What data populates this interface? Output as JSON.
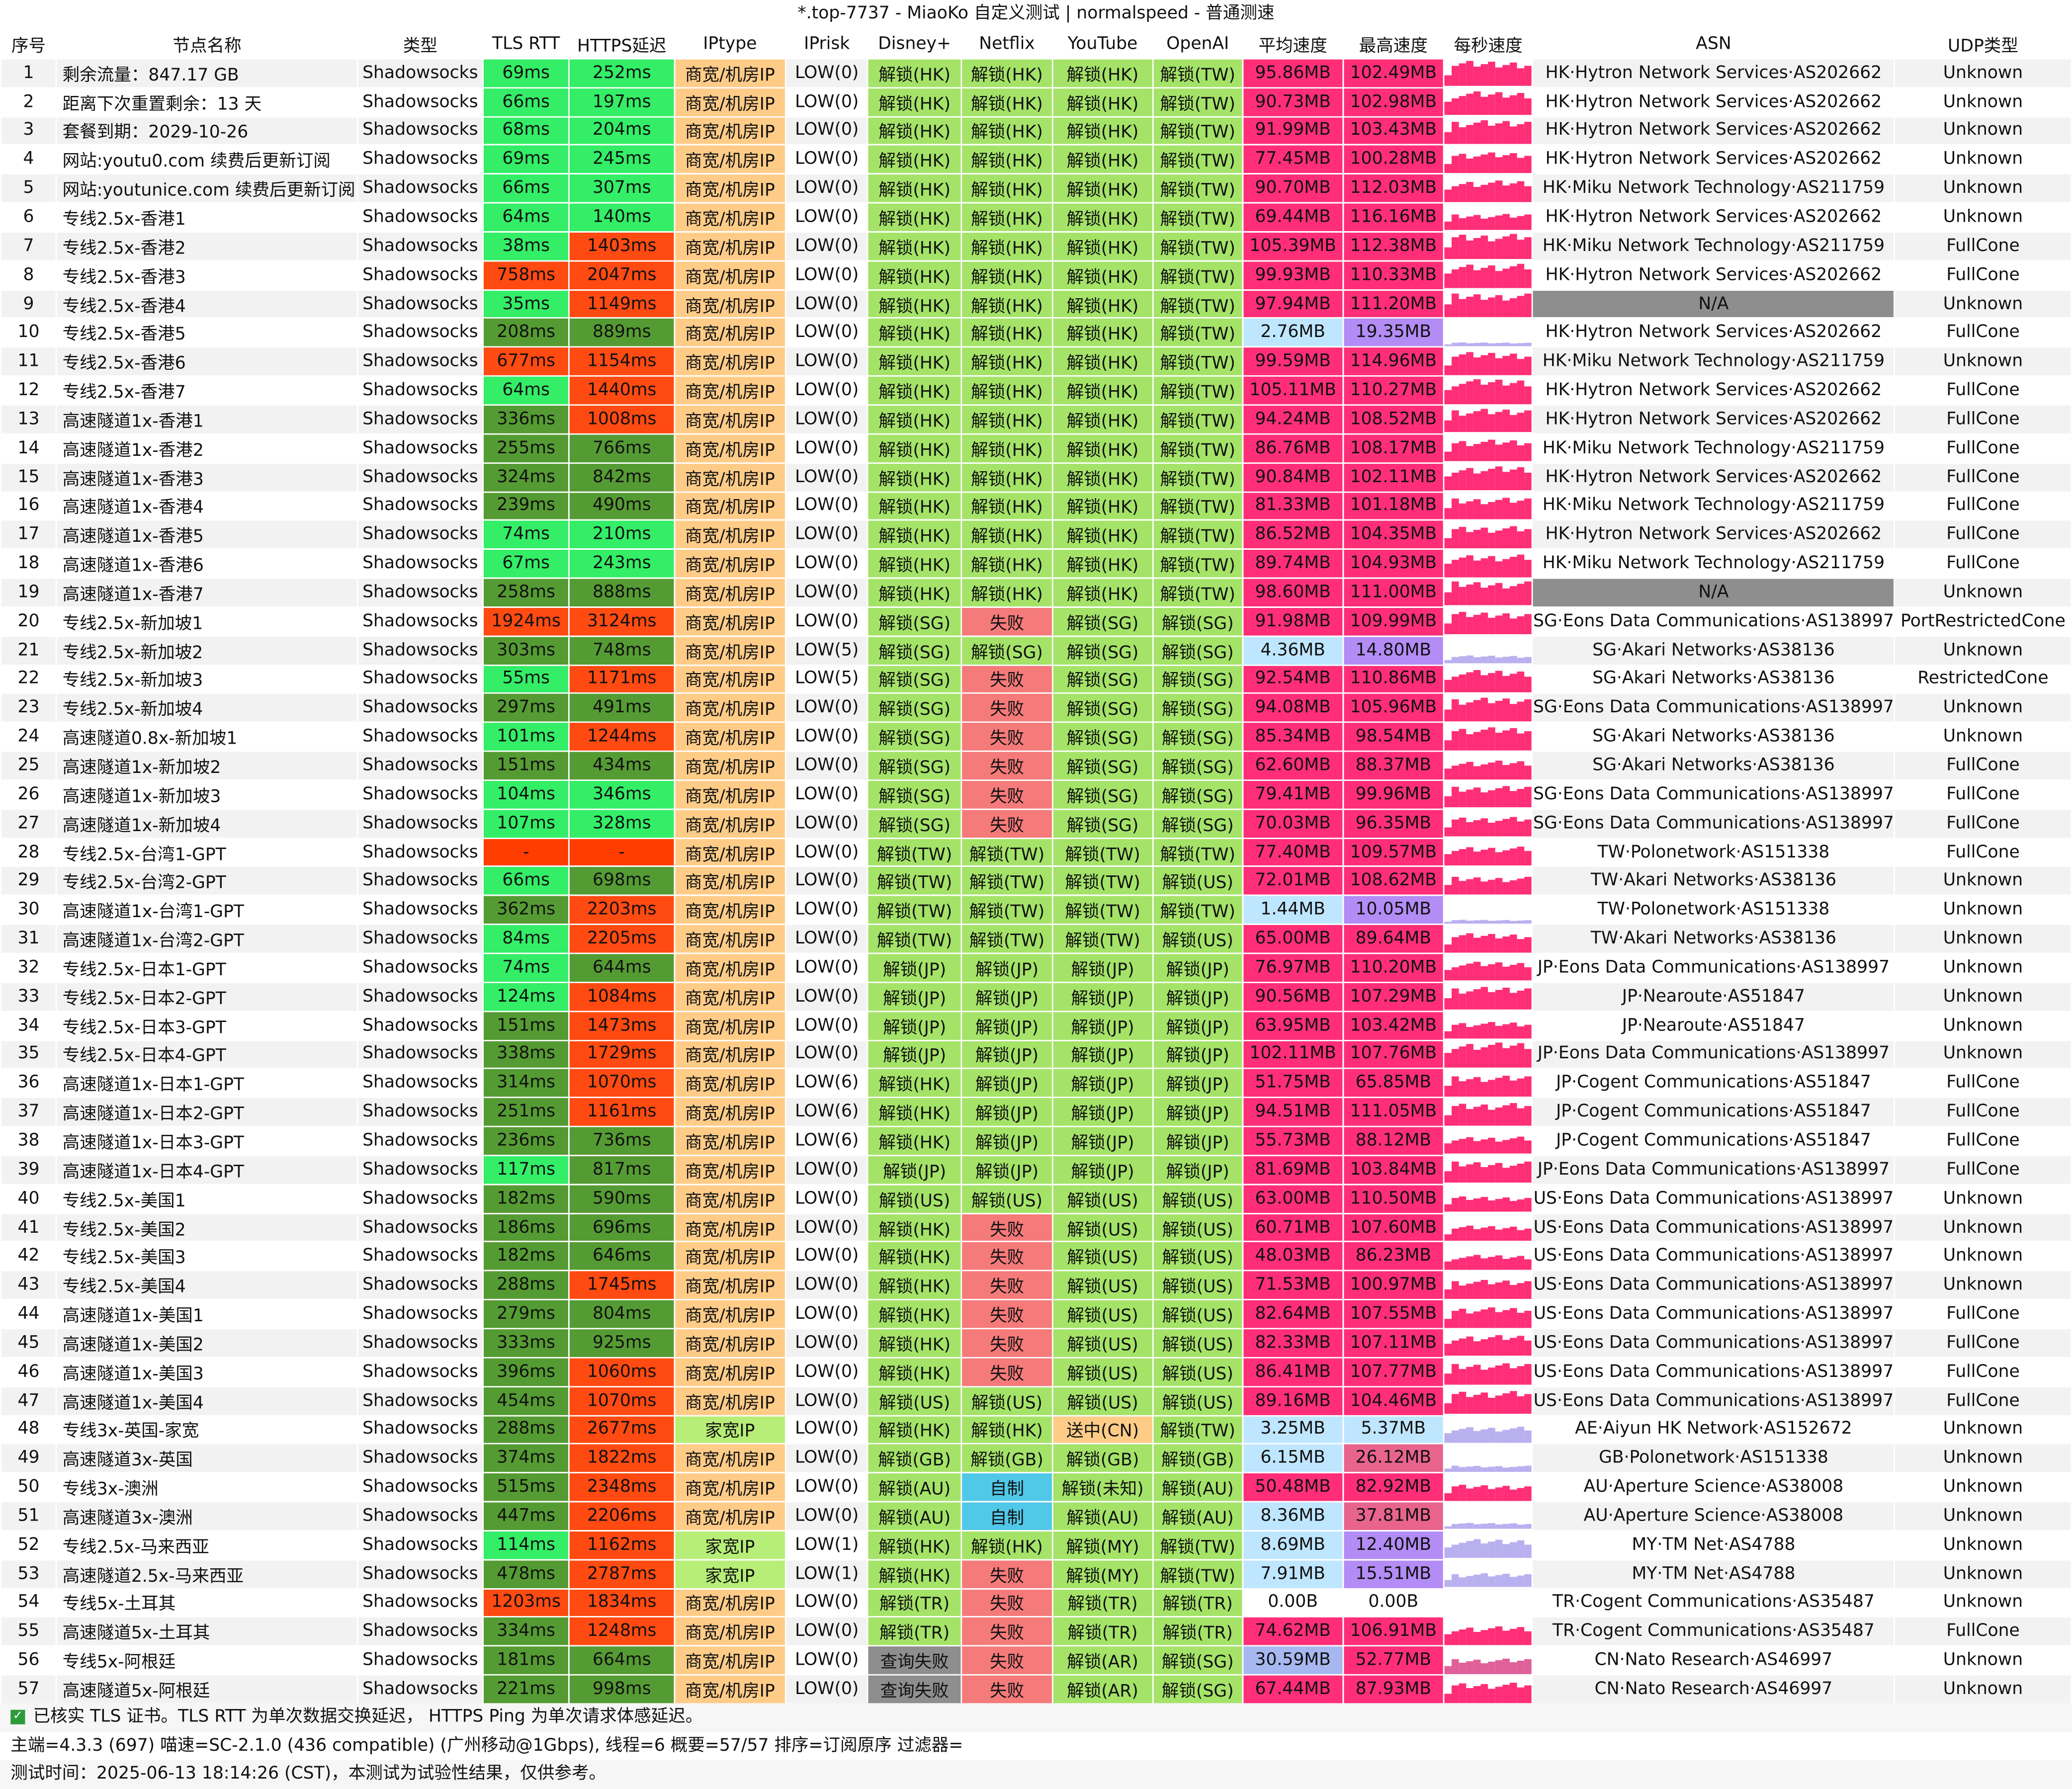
{
  "window_title": "*.top-7737 - MiaoKo 自定义测试 | normalspeed - 普通测速",
  "columns": [
    "序号",
    "节点名称",
    "类型",
    "TLS RTT",
    "HTTPS延迟",
    "IPtype",
    "IPrisk",
    "Disney+",
    "Netflix",
    "YouTube",
    "OpenAI",
    "平均速度",
    "最高速度",
    "每秒速度",
    "ASN",
    "UDP类型"
  ],
  "colors": {
    "rtt_good": "#33ee66",
    "rtt_mid": "#559b33",
    "rtt_bad": "#ff4a11",
    "rtt_fail": "#ff3d00",
    "iptype_business": "#ffcc88",
    "iptype_home": "#b7ee77",
    "unlock": "#a4e368",
    "fail": "#f57a7a",
    "self_made": "#50c8e8",
    "query_fail": "#8e8e8e",
    "sending": "#ffcc88",
    "speed_high": "#ff2e77",
    "speed_low": "#bfe6ff",
    "speed_mid": "#a7b8f0",
    "speed_purple": "#b38cf6",
    "asn_na": "#8e8e8e",
    "sparkline": "#ff2e77"
  },
  "rows": [
    [
      "1",
      "剩余流量：847.17 GB",
      "Shadowsocks",
      "69ms",
      "252ms",
      "商宽/机房IP",
      "LOW(0)",
      "解锁(HK)",
      "解锁(HK)",
      "解锁(HK)",
      "解锁(TW)",
      "95.86MB",
      "102.49MB",
      "",
      "HK·Hytron Network Services·AS202662",
      "Unknown"
    ],
    [
      "2",
      "距离下次重置剩余：13 天",
      "Shadowsocks",
      "66ms",
      "197ms",
      "商宽/机房IP",
      "LOW(0)",
      "解锁(HK)",
      "解锁(HK)",
      "解锁(HK)",
      "解锁(TW)",
      "90.73MB",
      "102.98MB",
      "",
      "HK·Hytron Network Services·AS202662",
      "Unknown"
    ],
    [
      "3",
      "套餐到期：2029-10-26",
      "Shadowsocks",
      "68ms",
      "204ms",
      "商宽/机房IP",
      "LOW(0)",
      "解锁(HK)",
      "解锁(HK)",
      "解锁(HK)",
      "解锁(TW)",
      "91.99MB",
      "103.43MB",
      "",
      "HK·Hytron Network Services·AS202662",
      "Unknown"
    ],
    [
      "4",
      "网站:youtu0.com 续费后更新订阅",
      "Shadowsocks",
      "69ms",
      "245ms",
      "商宽/机房IP",
      "LOW(0)",
      "解锁(HK)",
      "解锁(HK)",
      "解锁(HK)",
      "解锁(TW)",
      "77.45MB",
      "100.28MB",
      "",
      "HK·Hytron Network Services·AS202662",
      "Unknown"
    ],
    [
      "5",
      "网站:youtunice.com 续费后更新订阅",
      "Shadowsocks",
      "66ms",
      "307ms",
      "商宽/机房IP",
      "LOW(0)",
      "解锁(HK)",
      "解锁(HK)",
      "解锁(HK)",
      "解锁(TW)",
      "90.70MB",
      "112.03MB",
      "",
      "HK·Miku Network Technology·AS211759",
      "Unknown"
    ],
    [
      "6",
      "专线2.5x-香港1",
      "Shadowsocks",
      "64ms",
      "140ms",
      "商宽/机房IP",
      "LOW(0)",
      "解锁(HK)",
      "解锁(HK)",
      "解锁(HK)",
      "解锁(TW)",
      "69.44MB",
      "116.16MB",
      "",
      "HK·Hytron Network Services·AS202662",
      "Unknown"
    ],
    [
      "7",
      "专线2.5x-香港2",
      "Shadowsocks",
      "38ms",
      "1403ms",
      "商宽/机房IP",
      "LOW(0)",
      "解锁(HK)",
      "解锁(HK)",
      "解锁(HK)",
      "解锁(TW)",
      "105.39MB",
      "112.38MB",
      "",
      "HK·Miku Network Technology·AS211759",
      "FullCone"
    ],
    [
      "8",
      "专线2.5x-香港3",
      "Shadowsocks",
      "758ms",
      "2047ms",
      "商宽/机房IP",
      "LOW(0)",
      "解锁(HK)",
      "解锁(HK)",
      "解锁(HK)",
      "解锁(TW)",
      "99.93MB",
      "110.33MB",
      "",
      "HK·Hytron Network Services·AS202662",
      "FullCone"
    ],
    [
      "9",
      "专线2.5x-香港4",
      "Shadowsocks",
      "35ms",
      "1149ms",
      "商宽/机房IP",
      "LOW(0)",
      "解锁(HK)",
      "解锁(HK)",
      "解锁(HK)",
      "解锁(TW)",
      "97.94MB",
      "111.20MB",
      "",
      "N/A",
      "Unknown"
    ],
    [
      "10",
      "专线2.5x-香港5",
      "Shadowsocks",
      "208ms",
      "889ms",
      "商宽/机房IP",
      "LOW(0)",
      "解锁(HK)",
      "解锁(HK)",
      "解锁(HK)",
      "解锁(TW)",
      "2.76MB",
      "19.35MB",
      "",
      "HK·Hytron Network Services·AS202662",
      "FullCone"
    ],
    [
      "11",
      "专线2.5x-香港6",
      "Shadowsocks",
      "677ms",
      "1154ms",
      "商宽/机房IP",
      "LOW(0)",
      "解锁(HK)",
      "解锁(HK)",
      "解锁(HK)",
      "解锁(TW)",
      "99.59MB",
      "114.96MB",
      "",
      "HK·Miku Network Technology·AS211759",
      "Unknown"
    ],
    [
      "12",
      "专线2.5x-香港7",
      "Shadowsocks",
      "64ms",
      "1440ms",
      "商宽/机房IP",
      "LOW(0)",
      "解锁(HK)",
      "解锁(HK)",
      "解锁(HK)",
      "解锁(TW)",
      "105.11MB",
      "110.27MB",
      "",
      "HK·Hytron Network Services·AS202662",
      "FullCone"
    ],
    [
      "13",
      "高速隧道1x-香港1",
      "Shadowsocks",
      "336ms",
      "1008ms",
      "商宽/机房IP",
      "LOW(0)",
      "解锁(HK)",
      "解锁(HK)",
      "解锁(HK)",
      "解锁(TW)",
      "94.24MB",
      "108.52MB",
      "",
      "HK·Hytron Network Services·AS202662",
      "FullCone"
    ],
    [
      "14",
      "高速隧道1x-香港2",
      "Shadowsocks",
      "255ms",
      "766ms",
      "商宽/机房IP",
      "LOW(0)",
      "解锁(HK)",
      "解锁(HK)",
      "解锁(HK)",
      "解锁(TW)",
      "86.76MB",
      "108.17MB",
      "",
      "HK·Miku Network Technology·AS211759",
      "FullCone"
    ],
    [
      "15",
      "高速隧道1x-香港3",
      "Shadowsocks",
      "324ms",
      "842ms",
      "商宽/机房IP",
      "LOW(0)",
      "解锁(HK)",
      "解锁(HK)",
      "解锁(HK)",
      "解锁(TW)",
      "90.84MB",
      "102.11MB",
      "",
      "HK·Hytron Network Services·AS202662",
      "FullCone"
    ],
    [
      "16",
      "高速隧道1x-香港4",
      "Shadowsocks",
      "239ms",
      "490ms",
      "商宽/机房IP",
      "LOW(0)",
      "解锁(HK)",
      "解锁(HK)",
      "解锁(HK)",
      "解锁(TW)",
      "81.33MB",
      "101.18MB",
      "",
      "HK·Miku Network Technology·AS211759",
      "FullCone"
    ],
    [
      "17",
      "高速隧道1x-香港5",
      "Shadowsocks",
      "74ms",
      "210ms",
      "商宽/机房IP",
      "LOW(0)",
      "解锁(HK)",
      "解锁(HK)",
      "解锁(HK)",
      "解锁(TW)",
      "86.52MB",
      "104.35MB",
      "",
      "HK·Hytron Network Services·AS202662",
      "FullCone"
    ],
    [
      "18",
      "高速隧道1x-香港6",
      "Shadowsocks",
      "67ms",
      "243ms",
      "商宽/机房IP",
      "LOW(0)",
      "解锁(HK)",
      "解锁(HK)",
      "解锁(HK)",
      "解锁(TW)",
      "89.74MB",
      "104.93MB",
      "",
      "HK·Miku Network Technology·AS211759",
      "FullCone"
    ],
    [
      "19",
      "高速隧道1x-香港7",
      "Shadowsocks",
      "258ms",
      "888ms",
      "商宽/机房IP",
      "LOW(0)",
      "解锁(HK)",
      "解锁(HK)",
      "解锁(HK)",
      "解锁(TW)",
      "98.60MB",
      "111.00MB",
      "",
      "N/A",
      "Unknown"
    ],
    [
      "20",
      "专线2.5x-新加坡1",
      "Shadowsocks",
      "1924ms",
      "3124ms",
      "商宽/机房IP",
      "LOW(0)",
      "解锁(SG)",
      "失败",
      "解锁(SG)",
      "解锁(SG)",
      "91.98MB",
      "109.99MB",
      "",
      "SG·Eons Data Communications·AS138997",
      "PortRestrictedCone"
    ],
    [
      "21",
      "专线2.5x-新加坡2",
      "Shadowsocks",
      "303ms",
      "748ms",
      "商宽/机房IP",
      "LOW(5)",
      "解锁(SG)",
      "解锁(SG)",
      "解锁(SG)",
      "解锁(SG)",
      "4.36MB",
      "14.80MB",
      "",
      "SG·Akari Networks·AS38136",
      "Unknown"
    ],
    [
      "22",
      "专线2.5x-新加坡3",
      "Shadowsocks",
      "55ms",
      "1171ms",
      "商宽/机房IP",
      "LOW(5)",
      "解锁(SG)",
      "失败",
      "解锁(SG)",
      "解锁(SG)",
      "92.54MB",
      "110.86MB",
      "",
      "SG·Akari Networks·AS38136",
      "RestrictedCone"
    ],
    [
      "23",
      "专线2.5x-新加坡4",
      "Shadowsocks",
      "297ms",
      "491ms",
      "商宽/机房IP",
      "LOW(0)",
      "解锁(SG)",
      "失败",
      "解锁(SG)",
      "解锁(SG)",
      "94.08MB",
      "105.96MB",
      "",
      "SG·Eons Data Communications·AS138997",
      "Unknown"
    ],
    [
      "24",
      "高速隧道0.8x-新加坡1",
      "Shadowsocks",
      "101ms",
      "1244ms",
      "商宽/机房IP",
      "LOW(0)",
      "解锁(SG)",
      "失败",
      "解锁(SG)",
      "解锁(SG)",
      "85.34MB",
      "98.54MB",
      "",
      "SG·Akari Networks·AS38136",
      "Unknown"
    ],
    [
      "25",
      "高速隧道1x-新加坡2",
      "Shadowsocks",
      "151ms",
      "434ms",
      "商宽/机房IP",
      "LOW(0)",
      "解锁(SG)",
      "失败",
      "解锁(SG)",
      "解锁(SG)",
      "62.60MB",
      "88.37MB",
      "",
      "SG·Akari Networks·AS38136",
      "FullCone"
    ],
    [
      "26",
      "高速隧道1x-新加坡3",
      "Shadowsocks",
      "104ms",
      "346ms",
      "商宽/机房IP",
      "LOW(0)",
      "解锁(SG)",
      "失败",
      "解锁(SG)",
      "解锁(SG)",
      "79.41MB",
      "99.96MB",
      "",
      "SG·Eons Data Communications·AS138997",
      "FullCone"
    ],
    [
      "27",
      "高速隧道1x-新加坡4",
      "Shadowsocks",
      "107ms",
      "328ms",
      "商宽/机房IP",
      "LOW(0)",
      "解锁(SG)",
      "失败",
      "解锁(SG)",
      "解锁(SG)",
      "70.03MB",
      "96.35MB",
      "",
      "SG·Eons Data Communications·AS138997",
      "FullCone"
    ],
    [
      "28",
      "专线2.5x-台湾1-GPT",
      "Shadowsocks",
      "-",
      "-",
      "商宽/机房IP",
      "LOW(0)",
      "解锁(TW)",
      "解锁(TW)",
      "解锁(TW)",
      "解锁(TW)",
      "77.40MB",
      "109.57MB",
      "",
      "TW·Polonetwork·AS151338",
      "FullCone"
    ],
    [
      "29",
      "专线2.5x-台湾2-GPT",
      "Shadowsocks",
      "66ms",
      "698ms",
      "商宽/机房IP",
      "LOW(0)",
      "解锁(TW)",
      "解锁(TW)",
      "解锁(TW)",
      "解锁(US)",
      "72.01MB",
      "108.62MB",
      "",
      "TW·Akari Networks·AS38136",
      "Unknown"
    ],
    [
      "30",
      "高速隧道1x-台湾1-GPT",
      "Shadowsocks",
      "362ms",
      "2203ms",
      "商宽/机房IP",
      "LOW(0)",
      "解锁(TW)",
      "解锁(TW)",
      "解锁(TW)",
      "解锁(TW)",
      "1.44MB",
      "10.05MB",
      "",
      "TW·Polonetwork·AS151338",
      "Unknown"
    ],
    [
      "31",
      "高速隧道1x-台湾2-GPT",
      "Shadowsocks",
      "84ms",
      "2205ms",
      "商宽/机房IP",
      "LOW(0)",
      "解锁(TW)",
      "解锁(TW)",
      "解锁(TW)",
      "解锁(US)",
      "65.00MB",
      "89.64MB",
      "",
      "TW·Akari Networks·AS38136",
      "Unknown"
    ],
    [
      "32",
      "专线2.5x-日本1-GPT",
      "Shadowsocks",
      "74ms",
      "644ms",
      "商宽/机房IP",
      "LOW(0)",
      "解锁(JP)",
      "解锁(JP)",
      "解锁(JP)",
      "解锁(JP)",
      "76.97MB",
      "110.20MB",
      "",
      "JP·Eons Data Communications·AS138997",
      "Unknown"
    ],
    [
      "33",
      "专线2.5x-日本2-GPT",
      "Shadowsocks",
      "124ms",
      "1084ms",
      "商宽/机房IP",
      "LOW(0)",
      "解锁(JP)",
      "解锁(JP)",
      "解锁(JP)",
      "解锁(JP)",
      "90.56MB",
      "107.29MB",
      "",
      "JP·Nearoute·AS51847",
      "Unknown"
    ],
    [
      "34",
      "专线2.5x-日本3-GPT",
      "Shadowsocks",
      "151ms",
      "1473ms",
      "商宽/机房IP",
      "LOW(0)",
      "解锁(JP)",
      "解锁(JP)",
      "解锁(JP)",
      "解锁(JP)",
      "63.95MB",
      "103.42MB",
      "",
      "JP·Nearoute·AS51847",
      "Unknown"
    ],
    [
      "35",
      "专线2.5x-日本4-GPT",
      "Shadowsocks",
      "338ms",
      "1729ms",
      "商宽/机房IP",
      "LOW(0)",
      "解锁(JP)",
      "解锁(JP)",
      "解锁(JP)",
      "解锁(JP)",
      "102.11MB",
      "107.76MB",
      "",
      "JP·Eons Data Communications·AS138997",
      "Unknown"
    ],
    [
      "36",
      "高速隧道1x-日本1-GPT",
      "Shadowsocks",
      "314ms",
      "1070ms",
      "商宽/机房IP",
      "LOW(6)",
      "解锁(HK)",
      "解锁(JP)",
      "解锁(JP)",
      "解锁(JP)",
      "51.75MB",
      "65.85MB",
      "",
      "JP·Cogent Communications·AS51847",
      "FullCone"
    ],
    [
      "37",
      "高速隧道1x-日本2-GPT",
      "Shadowsocks",
      "251ms",
      "1161ms",
      "商宽/机房IP",
      "LOW(6)",
      "解锁(HK)",
      "解锁(JP)",
      "解锁(JP)",
      "解锁(JP)",
      "94.51MB",
      "111.05MB",
      "",
      "JP·Cogent Communications·AS51847",
      "FullCone"
    ],
    [
      "38",
      "高速隧道1x-日本3-GPT",
      "Shadowsocks",
      "236ms",
      "736ms",
      "商宽/机房IP",
      "LOW(6)",
      "解锁(HK)",
      "解锁(JP)",
      "解锁(JP)",
      "解锁(JP)",
      "55.73MB",
      "88.12MB",
      "",
      "JP·Cogent Communications·AS51847",
      "FullCone"
    ],
    [
      "39",
      "高速隧道1x-日本4-GPT",
      "Shadowsocks",
      "117ms",
      "817ms",
      "商宽/机房IP",
      "LOW(0)",
      "解锁(JP)",
      "解锁(JP)",
      "解锁(JP)",
      "解锁(JP)",
      "81.69MB",
      "103.84MB",
      "",
      "JP·Eons Data Communications·AS138997",
      "FullCone"
    ],
    [
      "40",
      "专线2.5x-美国1",
      "Shadowsocks",
      "182ms",
      "590ms",
      "商宽/机房IP",
      "LOW(0)",
      "解锁(US)",
      "解锁(US)",
      "解锁(US)",
      "解锁(US)",
      "63.00MB",
      "110.50MB",
      "",
      "US·Eons Data Communications·AS138997",
      "Unknown"
    ],
    [
      "41",
      "专线2.5x-美国2",
      "Shadowsocks",
      "186ms",
      "696ms",
      "商宽/机房IP",
      "LOW(0)",
      "解锁(HK)",
      "失败",
      "解锁(US)",
      "解锁(US)",
      "60.71MB",
      "107.60MB",
      "",
      "US·Eons Data Communications·AS138997",
      "Unknown"
    ],
    [
      "42",
      "专线2.5x-美国3",
      "Shadowsocks",
      "182ms",
      "646ms",
      "商宽/机房IP",
      "LOW(0)",
      "解锁(HK)",
      "失败",
      "解锁(US)",
      "解锁(US)",
      "48.03MB",
      "86.23MB",
      "",
      "US·Eons Data Communications·AS138997",
      "Unknown"
    ],
    [
      "43",
      "专线2.5x-美国4",
      "Shadowsocks",
      "288ms",
      "1745ms",
      "商宽/机房IP",
      "LOW(0)",
      "解锁(HK)",
      "失败",
      "解锁(US)",
      "解锁(US)",
      "71.53MB",
      "100.97MB",
      "",
      "US·Eons Data Communications·AS138997",
      "Unknown"
    ],
    [
      "44",
      "高速隧道1x-美国1",
      "Shadowsocks",
      "279ms",
      "804ms",
      "商宽/机房IP",
      "LOW(0)",
      "解锁(HK)",
      "失败",
      "解锁(US)",
      "解锁(US)",
      "82.64MB",
      "107.55MB",
      "",
      "US·Eons Data Communications·AS138997",
      "FullCone"
    ],
    [
      "45",
      "高速隧道1x-美国2",
      "Shadowsocks",
      "333ms",
      "925ms",
      "商宽/机房IP",
      "LOW(0)",
      "解锁(HK)",
      "失败",
      "解锁(US)",
      "解锁(US)",
      "82.33MB",
      "107.11MB",
      "",
      "US·Eons Data Communications·AS138997",
      "FullCone"
    ],
    [
      "46",
      "高速隧道1x-美国3",
      "Shadowsocks",
      "396ms",
      "1060ms",
      "商宽/机房IP",
      "LOW(0)",
      "解锁(HK)",
      "失败",
      "解锁(US)",
      "解锁(US)",
      "86.41MB",
      "107.77MB",
      "",
      "US·Eons Data Communications·AS138997",
      "FullCone"
    ],
    [
      "47",
      "高速隧道1x-美国4",
      "Shadowsocks",
      "454ms",
      "1070ms",
      "商宽/机房IP",
      "LOW(0)",
      "解锁(US)",
      "解锁(US)",
      "解锁(US)",
      "解锁(US)",
      "89.16MB",
      "104.46MB",
      "",
      "US·Eons Data Communications·AS138997",
      "FullCone"
    ],
    [
      "48",
      "专线3x-英国-家宽",
      "Shadowsocks",
      "288ms",
      "2677ms",
      "家宽IP",
      "LOW(0)",
      "解锁(HK)",
      "解锁(HK)",
      "送中(CN)",
      "解锁(TW)",
      "3.25MB",
      "5.37MB",
      "",
      "AE·Aiyun HK Network·AS152672",
      "Unknown"
    ],
    [
      "49",
      "高速隧道3x-英国",
      "Shadowsocks",
      "374ms",
      "1822ms",
      "商宽/机房IP",
      "LOW(0)",
      "解锁(GB)",
      "解锁(GB)",
      "解锁(GB)",
      "解锁(GB)",
      "6.15MB",
      "26.12MB",
      "",
      "GB·Polonetwork·AS151338",
      "Unknown"
    ],
    [
      "50",
      "专线3x-澳洲",
      "Shadowsocks",
      "515ms",
      "2348ms",
      "商宽/机房IP",
      "LOW(0)",
      "解锁(AU)",
      "自制",
      "解锁(未知)",
      "解锁(AU)",
      "50.48MB",
      "82.92MB",
      "",
      "AU·Aperture Science·AS38008",
      "Unknown"
    ],
    [
      "51",
      "高速隧道3x-澳洲",
      "Shadowsocks",
      "447ms",
      "2206ms",
      "商宽/机房IP",
      "LOW(0)",
      "解锁(AU)",
      "自制",
      "解锁(AU)",
      "解锁(AU)",
      "8.36MB",
      "37.81MB",
      "",
      "AU·Aperture Science·AS38008",
      "Unknown"
    ],
    [
      "52",
      "专线2.5x-马来西亚",
      "Shadowsocks",
      "114ms",
      "1162ms",
      "家宽IP",
      "LOW(1)",
      "解锁(HK)",
      "解锁(HK)",
      "解锁(MY)",
      "解锁(TW)",
      "8.69MB",
      "12.40MB",
      "",
      "MY·TM Net·AS4788",
      "Unknown"
    ],
    [
      "53",
      "高速隧道2.5x-马来西亚",
      "Shadowsocks",
      "478ms",
      "2787ms",
      "家宽IP",
      "LOW(1)",
      "解锁(HK)",
      "失败",
      "解锁(MY)",
      "解锁(TW)",
      "7.91MB",
      "15.51MB",
      "",
      "MY·TM Net·AS4788",
      "Unknown"
    ],
    [
      "54",
      "专线5x-土耳其",
      "Shadowsocks",
      "1203ms",
      "1834ms",
      "商宽/机房IP",
      "LOW(0)",
      "解锁(TR)",
      "失败",
      "解锁(TR)",
      "解锁(TR)",
      "0.00B",
      "0.00B",
      "",
      "TR·Cogent Communications·AS35487",
      "Unknown"
    ],
    [
      "55",
      "高速隧道5x-土耳其",
      "Shadowsocks",
      "334ms",
      "1248ms",
      "商宽/机房IP",
      "LOW(0)",
      "解锁(TR)",
      "失败",
      "解锁(TR)",
      "解锁(TR)",
      "74.62MB",
      "106.91MB",
      "",
      "TR·Cogent Communications·AS35487",
      "FullCone"
    ],
    [
      "56",
      "专线5x-阿根廷",
      "Shadowsocks",
      "181ms",
      "664ms",
      "商宽/机房IP",
      "LOW(0)",
      "查询失败",
      "失败",
      "解锁(AR)",
      "解锁(SG)",
      "30.59MB",
      "52.77MB",
      "",
      "CN·Nato Research·AS46997",
      "Unknown"
    ],
    [
      "57",
      "高速隧道5x-阿根廷",
      "Shadowsocks",
      "221ms",
      "998ms",
      "商宽/机房IP",
      "LOW(0)",
      "查询失败",
      "失败",
      "解锁(AR)",
      "解锁(SG)",
      "67.44MB",
      "87.93MB",
      "",
      "CN·Nato Research·AS46997",
      "Unknown"
    ]
  ],
  "footer": {
    "line1": "已核实 TLS 证书。TLS RTT 为单次数据交换延迟， HTTPS Ping 为单次请求体感延迟。",
    "line2": "主端=4.3.3 (697) 喵速=SC-2.1.0 (436 compatible) (广州移动@1Gbps), 线程=6 概要=57/57 排序=订阅原序 过滤器=",
    "line3": "测试时间：2025-06-13 18:14:26 (CST)，本测试为试验性结果，仅供参考。",
    "check_icon": "check-icon"
  }
}
